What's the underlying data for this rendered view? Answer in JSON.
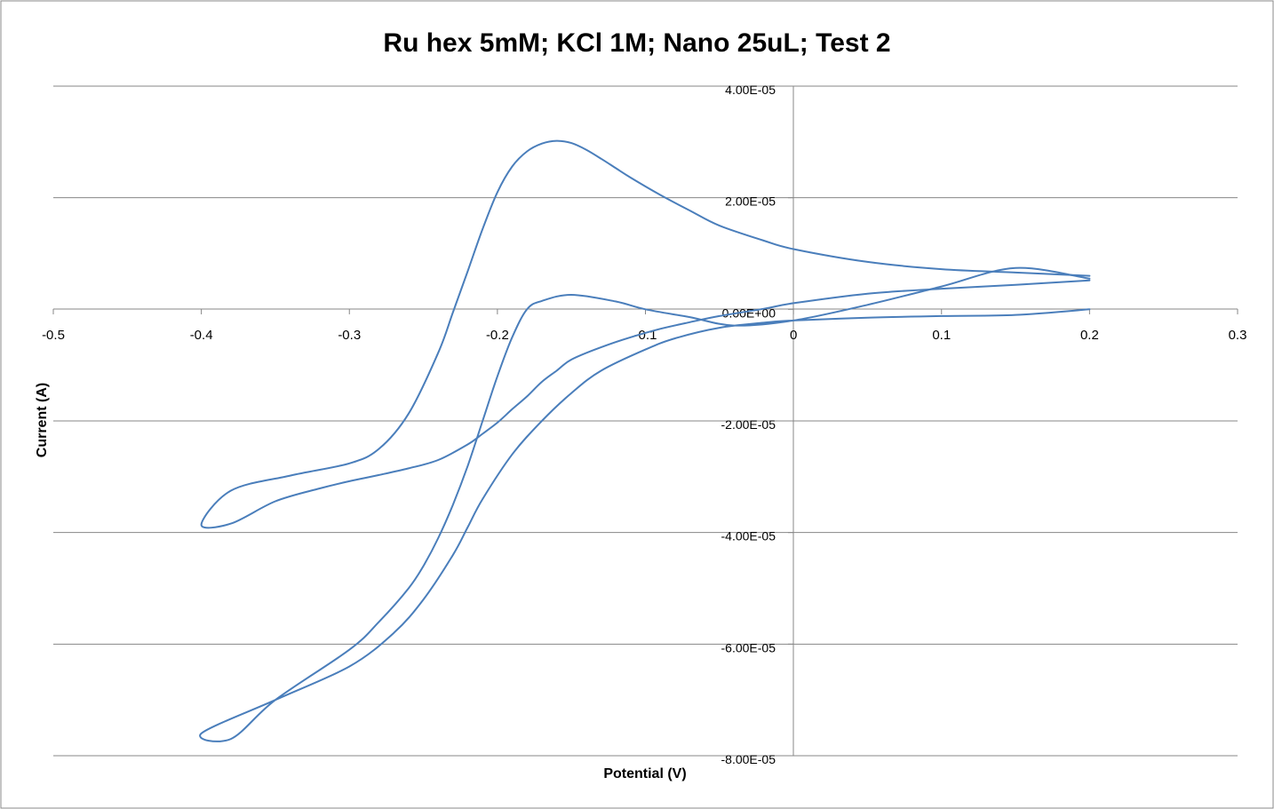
{
  "chart_data": {
    "type": "line",
    "title": "Ru hex 5mM; KCl 1M; Nano 25uL; Test 2",
    "xlabel": "Potential (V)",
    "ylabel": "Current (A)",
    "xlim": [
      -0.5,
      0.3
    ],
    "ylim": [
      -8e-05,
      4e-05
    ],
    "x_ticks": [
      -0.5,
      -0.4,
      -0.3,
      -0.2,
      -0.1,
      0,
      0.1,
      0.2,
      0.3
    ],
    "x_tick_labels": [
      "-0.5",
      "-0.4",
      "-0.3",
      "-0.2",
      "-0.1",
      "0",
      "0.1",
      "0.2",
      "0.3"
    ],
    "y_ticks": [
      4e-05,
      2e-05,
      0,
      -2e-05,
      -4e-05,
      -6e-05,
      -8e-05
    ],
    "y_tick_labels": [
      "4.00E-05",
      "2.00E-05",
      "0.00E+00",
      "-2.00E-05",
      "-4.00E-05",
      "-6.00E-05",
      "-8.00E-05"
    ],
    "grid": "horizontal",
    "legend": "none",
    "line_color": "#4a7ebb",
    "series": [
      {
        "x": [
          0.2,
          0.15,
          0.1,
          0.05,
          0.0,
          -0.02,
          -0.05,
          -0.08,
          -0.1,
          -0.13,
          -0.15,
          -0.17,
          -0.19,
          -0.21,
          -0.22,
          -0.23,
          -0.25,
          -0.27,
          -0.3,
          -0.35,
          -0.4,
          -0.38,
          -0.35,
          -0.3,
          -0.28,
          -0.26,
          -0.25,
          -0.24,
          -0.23,
          -0.22,
          -0.21,
          -0.2,
          -0.19,
          -0.18,
          -0.17,
          -0.15,
          -0.12,
          -0.1,
          -0.07,
          -0.04,
          0.0,
          0.05,
          0.1,
          0.15,
          0.2
        ],
        "y": [
          0.0,
          -1e-06,
          -1.2e-06,
          -1.5e-06,
          -2e-06,
          -2.4e-06,
          -3.3e-06,
          -5.2e-06,
          -7.2e-06,
          -1.1e-05,
          -1.5e-05,
          -2e-05,
          -2.6e-05,
          -3.4e-05,
          -3.9e-05,
          -4.4e-05,
          -5.2e-05,
          -5.8e-05,
          -6.4e-05,
          -7e-05,
          -7.6e-05,
          -7.7e-05,
          -7e-05,
          -6.1e-05,
          -5.6e-05,
          -5e-05,
          -4.6e-05,
          -4.1e-05,
          -3.5e-05,
          -2.8e-05,
          -2e-05,
          -1.2e-05,
          -5e-06,
          0.0,
          1.5e-06,
          2.6e-06,
          1.4e-06,
          0.0,
          -1.4e-06,
          -2.9e-06,
          -2e-06,
          8e-07,
          4.1e-06,
          7.4e-06,
          5.5e-06
        ]
      },
      {
        "x": [
          0.2,
          0.15,
          0.1,
          0.05,
          0.0,
          -0.02,
          -0.05,
          -0.07,
          -0.09,
          -0.11,
          -0.12,
          -0.13,
          -0.14,
          -0.15,
          -0.16,
          -0.17,
          -0.18,
          -0.19,
          -0.2,
          -0.21,
          -0.22,
          -0.23,
          -0.24,
          -0.26,
          -0.28,
          -0.3,
          -0.34,
          -0.38,
          -0.4,
          -0.38,
          -0.35,
          -0.32,
          -0.3,
          -0.28,
          -0.26,
          -0.24,
          -0.22,
          -0.21,
          -0.2,
          -0.19,
          -0.18,
          -0.17,
          -0.16,
          -0.15,
          -0.13,
          -0.11,
          -0.09,
          -0.07,
          -0.05,
          -0.02,
          0.0,
          0.05,
          0.1,
          0.15,
          0.2
        ],
        "y": [
          6e-06,
          6.6e-06,
          7.2e-06,
          8.5e-06,
          1.08e-05,
          1.23e-05,
          1.5e-05,
          1.77e-05,
          2.05e-05,
          2.36e-05,
          2.53e-05,
          2.7e-05,
          2.86e-05,
          2.98e-05,
          3.02e-05,
          2.97e-05,
          2.83e-05,
          2.56e-05,
          2.1e-05,
          1.44e-05,
          6.9e-06,
          -5e-07,
          -7.8e-06,
          -1.87e-05,
          -2.5e-05,
          -2.76e-05,
          -2.98e-05,
          -3.25e-05,
          -3.86e-05,
          -3.84e-05,
          -3.44e-05,
          -3.21e-05,
          -3.08e-05,
          -2.97e-05,
          -2.85e-05,
          -2.7e-05,
          -2.42e-05,
          -2.23e-05,
          -2.03e-05,
          -1.79e-05,
          -1.56e-05,
          -1.3e-05,
          -1.1e-05,
          -9e-06,
          -6.8e-06,
          -5e-06,
          -3.5e-06,
          -2.3e-06,
          -1.2e-06,
          1e-07,
          1.1e-06,
          2.8e-06,
          3.7e-06,
          4.4e-06,
          5.2e-06
        ]
      }
    ]
  }
}
